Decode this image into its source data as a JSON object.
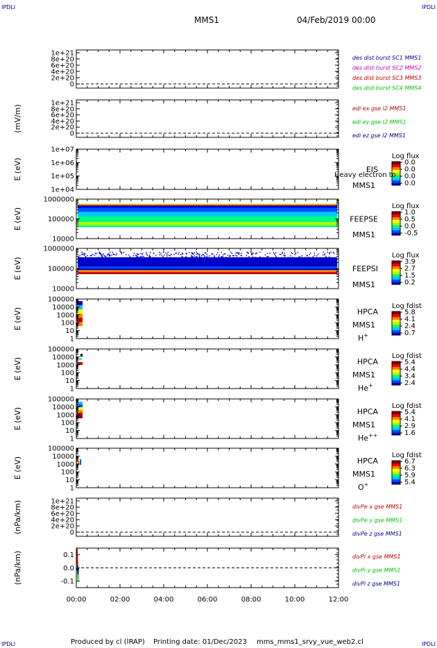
{
  "header": {
    "corner_tl": "IPDLI",
    "corner_tr": "IPDLI",
    "corner_bl": "IPDLI",
    "corner_br": "IPDLI",
    "title": "MMS1",
    "date": "04/Feb/2019 00:00"
  },
  "footer": {
    "produced": "Produced by cl (IRAP)",
    "printing": "Printing date: 01/Dec/2023",
    "file": "mms_mms1_srvy_vue_web2.cl"
  },
  "colors": {
    "colorbar": [
      "#0000c8",
      "#0050ff",
      "#00c8ff",
      "#00ff80",
      "#b4ff00",
      "#ffff00",
      "#ff8000",
      "#ff0000",
      "#8b0000"
    ],
    "mms1": "#00008b",
    "mms2": "#c000c0",
    "mms3": "#c00000",
    "mms4": "#00c000",
    "x_comp": "#c00000",
    "y_comp": "#00c000",
    "z_comp": "#00008b"
  },
  "chart_data": [
    {
      "type": "line",
      "id": "p1",
      "yticks": [
        "1e+21",
        "8e+20",
        "6e+20",
        "4e+20",
        "2e+20",
        "0"
      ],
      "ylabel": "",
      "legend": [
        {
          "text": "des dist burst SC1 MMS1",
          "color": "#00008b"
        },
        {
          "text": "des dist burst SC2 MMS2",
          "color": "#c000c0"
        },
        {
          "text": "des dist burst SC3 MMS3",
          "color": "#c00000"
        },
        {
          "text": "des dist burst SC4 MMS4",
          "color": "#00c000"
        }
      ],
      "zero_line": true
    },
    {
      "type": "line",
      "id": "p2",
      "yticks": [
        "1e+21",
        "8e+20",
        "6e+20",
        "4e+20",
        "2e+20",
        "0"
      ],
      "ylabel": "(mV/m)",
      "legend": [
        {
          "text": "edi ex gse l2 MMS1",
          "color": "#c00000"
        },
        {
          "text": "edi ey gse l2 MMS1",
          "color": "#00c000"
        },
        {
          "text": "edi ez gse l2 MMS1",
          "color": "#00008b"
        }
      ],
      "zero_line": true
    },
    {
      "type": "heatmap",
      "id": "p3",
      "yticks": [
        "1e+07",
        "1e+06",
        "1e+05",
        "1e+04"
      ],
      "ylabel": "E (eV)",
      "labels": [
        "EIS",
        "MMS1"
      ],
      "overlay": "Heavy electron to",
      "colorbar": {
        "title": "Log flux",
        "values": [
          "0.0",
          "0.0",
          "0.0",
          "0.0"
        ]
      }
    },
    {
      "type": "heatmap",
      "id": "p4",
      "yticks": [
        "1000000",
        "100000",
        "10000"
      ],
      "ylabel": "E (eV)",
      "labels": [
        "FEEPSE",
        "MMS1"
      ],
      "colorbar": {
        "title": "Log flux",
        "values": [
          "1.0",
          "0.5",
          "0.0",
          "-0.5"
        ]
      }
    },
    {
      "type": "heatmap",
      "id": "p5",
      "yticks": [
        "1000000",
        "100000",
        "10000"
      ],
      "ylabel": "E (eV)",
      "labels": [
        "FEEPSI",
        "MMS1"
      ],
      "colorbar": {
        "title": "Log flux",
        "values": [
          "3.9",
          "2.7",
          "1.5",
          "0.2"
        ]
      }
    },
    {
      "type": "heatmap",
      "id": "p6",
      "yticks": [
        "100000",
        "10000",
        "1000",
        "100",
        "10",
        "1"
      ],
      "ylabel": "E (eV)",
      "labels": [
        "HPCA",
        "MMS1"
      ],
      "species": "H",
      "species_sup": "+",
      "colorbar": {
        "title": "Log fdist",
        "values": [
          "5.8",
          "4.1",
          "2.4",
          "0.7"
        ]
      }
    },
    {
      "type": "heatmap",
      "id": "p7",
      "yticks": [
        "100000",
        "10000",
        "1000",
        "100",
        "10",
        "1"
      ],
      "ylabel": "E (eV)",
      "labels": [
        "HPCA",
        "MMS1"
      ],
      "species": "He",
      "species_sup": "+",
      "colorbar": {
        "title": "Log fdist",
        "values": [
          "5.4",
          "4.4",
          "3.4",
          "2.4"
        ]
      }
    },
    {
      "type": "heatmap",
      "id": "p8",
      "yticks": [
        "100000",
        "10000",
        "1000",
        "100",
        "10",
        "1"
      ],
      "ylabel": "E (eV)",
      "labels": [
        "HPCA",
        "MMS1"
      ],
      "species": "He",
      "species_sup": "++",
      "colorbar": {
        "title": "Log fdist",
        "values": [
          "5.4",
          "4.1",
          "2.9",
          "1.6"
        ]
      }
    },
    {
      "type": "heatmap",
      "id": "p9",
      "yticks": [
        "100000",
        "10000",
        "1000",
        "100",
        "10",
        "1"
      ],
      "ylabel": "E (eV)",
      "labels": [
        "HPCA",
        "MMS1"
      ],
      "species": "O",
      "species_sup": "+",
      "colorbar": {
        "title": "Log fdist",
        "values": [
          "6.7",
          "6.3",
          "5.9",
          "5.4"
        ]
      }
    },
    {
      "type": "line",
      "id": "p10",
      "yticks": [
        "1e+21",
        "8e+20",
        "6e+20",
        "4e+20",
        "2e+20",
        "0"
      ],
      "ylabel": "(nPa/km)",
      "legend": [
        {
          "text": "divPe x gse MMS1",
          "color": "#c00000"
        },
        {
          "text": "divPe y gse MMS1",
          "color": "#00c000"
        },
        {
          "text": "divPe z gse MMS1",
          "color": "#00008b"
        }
      ],
      "zero_line": true
    },
    {
      "type": "line",
      "id": "p11",
      "yticks": [
        "0.1",
        "0.0",
        "-0.1"
      ],
      "yvalues": [
        0.1,
        0.0,
        -0.1
      ],
      "ylim": [
        -0.15,
        0.15
      ],
      "ylabel": "(nPa/km)",
      "legend": [
        {
          "text": "divPi x gse MMS1",
          "color": "#c00000"
        },
        {
          "text": "divPi y gse MMS1",
          "color": "#00c000"
        },
        {
          "text": "divPi z gse MMS1",
          "color": "#00008b"
        }
      ],
      "zero_line": true,
      "series": [
        {
          "name": "divPi x gse MMS1",
          "color": "#c00000",
          "x": [
            0.02,
            0.04,
            0.06,
            0.08,
            0.1
          ],
          "values": [
            0.0,
            0.15,
            0.05,
            -0.02,
            0.0
          ]
        },
        {
          "name": "divPi y gse MMS1",
          "color": "#00c000",
          "x": [
            0.02,
            0.04,
            0.06,
            0.08,
            0.1
          ],
          "values": [
            0.0,
            0.03,
            -0.06,
            -0.1,
            0.0
          ]
        },
        {
          "name": "divPi z gse MMS1",
          "color": "#00008b",
          "x": [
            0.02,
            0.04,
            0.06,
            0.08,
            0.1
          ],
          "values": [
            0.0,
            -0.02,
            0.02,
            -0.05,
            0.0
          ]
        }
      ]
    }
  ],
  "xaxis": {
    "ticks": [
      "00:00",
      "02:00",
      "04:00",
      "06:00",
      "08:00",
      "10:00",
      "12:00"
    ],
    "xlim_hours": [
      0,
      12
    ]
  }
}
